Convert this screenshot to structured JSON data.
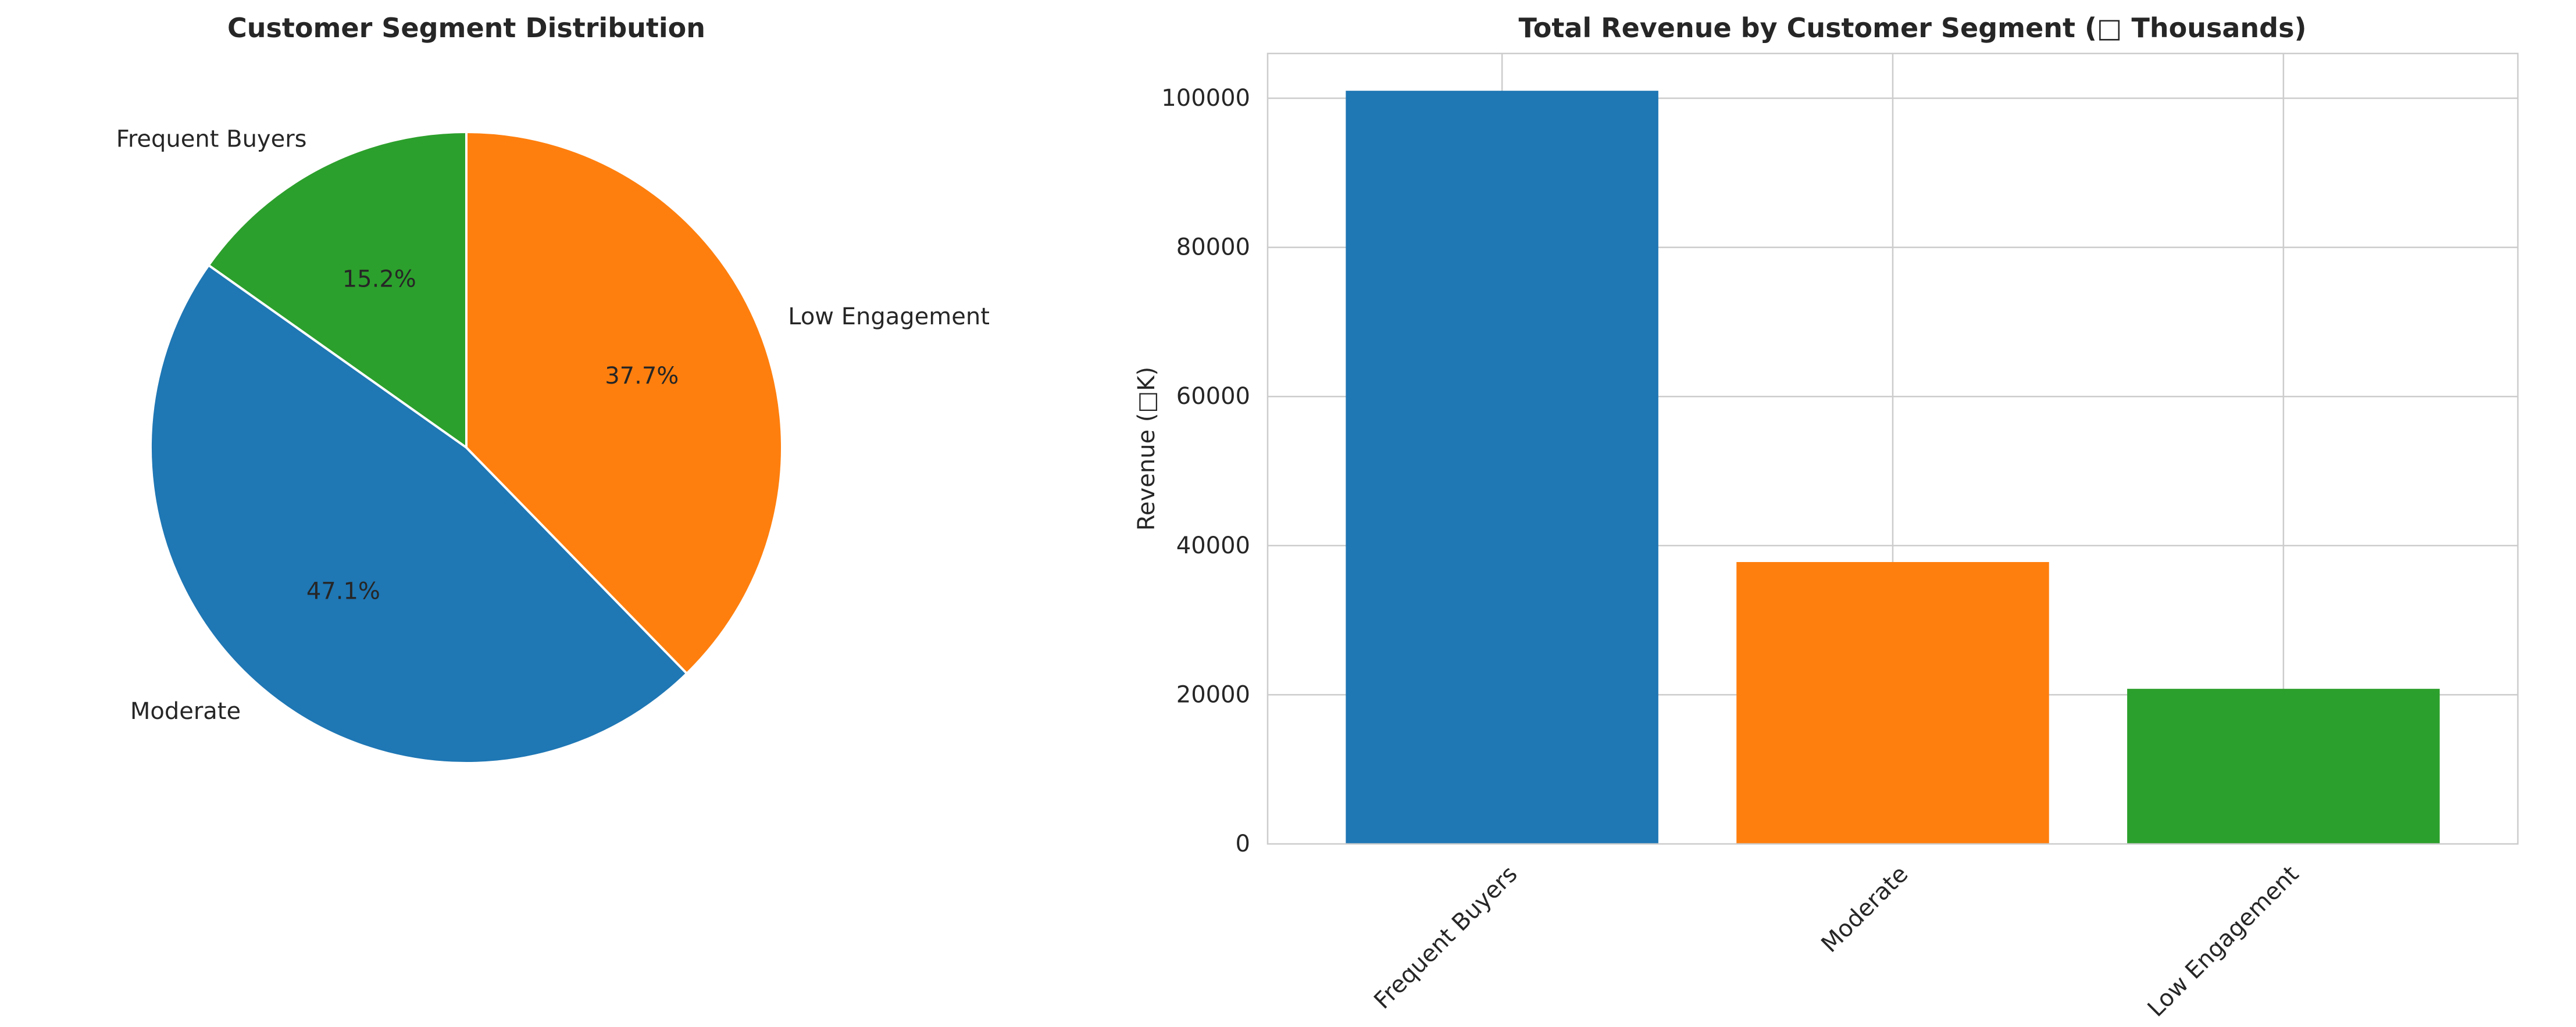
{
  "chart_data": [
    {
      "type": "pie",
      "title": "Customer Segment Distribution",
      "start_angle_deg": 90,
      "direction": "counterclockwise",
      "slices": [
        {
          "label": "Frequent Buyers",
          "percent": 15.2,
          "percent_label": "15.2%",
          "color": "#2ca02c"
        },
        {
          "label": "Moderate",
          "percent": 47.1,
          "percent_label": "47.1%",
          "color": "#1f77b4"
        },
        {
          "label": "Low Engagement",
          "percent": 37.7,
          "percent_label": "37.7%",
          "color": "#ff7f0e"
        }
      ]
    },
    {
      "type": "bar",
      "title": "Total Revenue by Customer Segment (□ Thousands)",
      "xlabel": "",
      "ylabel": "Revenue (□K)",
      "ylim": [
        0,
        106000
      ],
      "yticks": [
        0,
        20000,
        40000,
        60000,
        80000,
        100000
      ],
      "grid": true,
      "categories": [
        "Frequent Buyers",
        "Moderate",
        "Low Engagement"
      ],
      "values": [
        101000,
        37800,
        20800
      ],
      "colors": [
        "#1f77b4",
        "#ff7f0e",
        "#2ca02c"
      ]
    }
  ]
}
